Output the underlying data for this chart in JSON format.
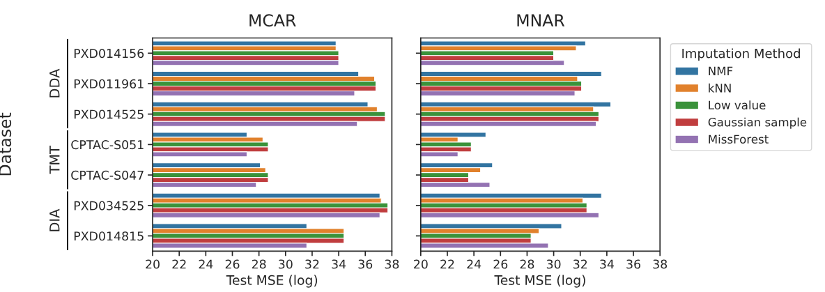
{
  "chart_data": [
    {
      "type": "bar",
      "orientation": "horizontal",
      "title": "MCAR",
      "xlabel": "Test MSE (log)",
      "ylabel": "Dataset",
      "categories": [
        "PXD014156",
        "PXD011961",
        "PXD014525",
        "CPTAC-S051",
        "CPTAC-S047",
        "PXD034525",
        "PXD014815"
      ],
      "series": [
        {
          "color": "#3274a1",
          "values": [
            33.8,
            35.5,
            36.2,
            27.1,
            28.1,
            37.1,
            31.6
          ]
        },
        {
          "color": "#e1812c",
          "values": [
            33.8,
            36.7,
            36.9,
            28.3,
            28.5,
            37.2,
            34.4
          ]
        },
        {
          "color": "#3a923a",
          "values": [
            34.0,
            36.8,
            37.5,
            28.7,
            28.7,
            37.7,
            34.4
          ]
        },
        {
          "color": "#c03d3e",
          "values": [
            34.0,
            36.8,
            37.5,
            28.7,
            28.7,
            37.7,
            34.4
          ]
        },
        {
          "color": "#9372b2",
          "values": [
            34.0,
            35.2,
            35.4,
            27.1,
            27.8,
            37.1,
            31.6
          ]
        }
      ],
      "xlim": [
        20,
        38
      ],
      "xticks": [
        20,
        22,
        24,
        26,
        28,
        30,
        32,
        34,
        36,
        38
      ],
      "annotations": [
        "DDA",
        "TMT",
        "DIA"
      ]
    },
    {
      "type": "bar",
      "orientation": "horizontal",
      "title": "MNAR",
      "xlabel": "Test MSE (log)",
      "legend_title": "Imputation Method",
      "legend": "right",
      "tick_labels": "x",
      "categories": [
        null,
        null,
        null,
        null,
        null,
        null,
        null
      ],
      "series": [
        {
          "name": "NMF",
          "color": "#3274a1",
          "values": [
            32.4,
            33.6,
            34.3,
            24.9,
            25.4,
            33.6,
            30.6
          ]
        },
        {
          "name": "kNN",
          "color": "#e1812c",
          "values": [
            31.7,
            31.8,
            33.0,
            22.8,
            24.5,
            32.2,
            28.9
          ]
        },
        {
          "name": "Low value",
          "color": "#3a923a",
          "values": [
            30.0,
            32.1,
            33.4,
            23.8,
            23.6,
            32.5,
            28.3
          ]
        },
        {
          "name": "Gaussian sample",
          "color": "#c03d3e",
          "values": [
            30.0,
            32.1,
            33.4,
            23.8,
            23.6,
            32.5,
            28.3
          ]
        },
        {
          "name": "MissForest",
          "color": "#9372b2",
          "values": [
            30.8,
            31.6,
            33.2,
            22.8,
            25.2,
            33.4,
            29.6
          ]
        }
      ],
      "xlim": [
        20,
        38
      ],
      "xticks": [
        20,
        22,
        24,
        26,
        28,
        30,
        32,
        34,
        36,
        38
      ]
    }
  ]
}
